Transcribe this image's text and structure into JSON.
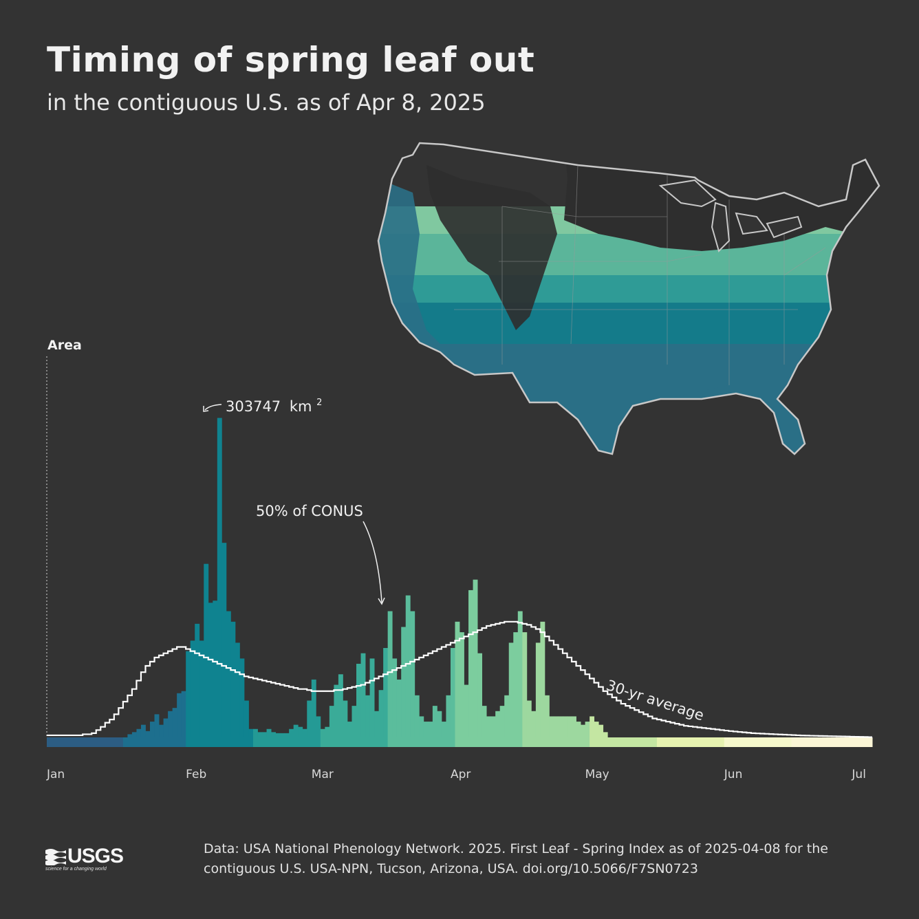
{
  "title": "Timing of spring leaf out",
  "subtitle": "in the contiguous U.S. as of Apr 8, 2025",
  "source": "Data: USA National Phenology Network. 2025. First Leaf - Spring Index as of 2025-04-08 for the contiguous U.S. USA-NPN, Tucson, Arizona, USA. doi.org/10.5066/F7SN0723",
  "logo": {
    "word": "USGS",
    "tagline": "science for a changing world"
  },
  "map": {
    "fill_colors": [
      "#2a6f86",
      "#147b8a",
      "#2f9b96",
      "#5bb59a",
      "#80c8a0"
    ],
    "outline_color": "#c8c8c8"
  },
  "chart_data": {
    "type": "bar",
    "ylabel": "Area",
    "x_tick_labels": [
      "Jan",
      "Feb",
      "Mar",
      "Apr",
      "May",
      "Jun",
      "Jul"
    ],
    "x_ticks_day": [
      0,
      31,
      59,
      90,
      120,
      151,
      181
    ],
    "x_domain": [
      0,
      184
    ],
    "y_domain": [
      0,
      310000
    ],
    "band_colors": [
      {
        "start": 0,
        "end": 17,
        "color": "#2c5d83"
      },
      {
        "start": 17,
        "end": 31,
        "color": "#1d6f8e"
      },
      {
        "start": 31,
        "end": 46,
        "color": "#0f8390"
      },
      {
        "start": 46,
        "end": 61,
        "color": "#249a95"
      },
      {
        "start": 61,
        "end": 76,
        "color": "#3aab98"
      },
      {
        "start": 76,
        "end": 91,
        "color": "#5bbd9c"
      },
      {
        "start": 91,
        "end": 106,
        "color": "#7ccd9e"
      },
      {
        "start": 106,
        "end": 121,
        "color": "#9dd89f"
      },
      {
        "start": 121,
        "end": 136,
        "color": "#c4e6a2"
      },
      {
        "start": 136,
        "end": 151,
        "color": "#e6f2b0"
      },
      {
        "start": 151,
        "end": 166,
        "color": "#f6f8cc"
      },
      {
        "start": 166,
        "end": 184,
        "color": "#fbf6d6"
      }
    ],
    "series": [
      {
        "name": "2025",
        "start_day": 0,
        "values": [
          0,
          0,
          0,
          0,
          0,
          0,
          0,
          0,
          0,
          0,
          0,
          0,
          0,
          0,
          0,
          0,
          0,
          0,
          3000,
          5000,
          8000,
          12000,
          6000,
          15000,
          22000,
          12000,
          18000,
          25000,
          28000,
          42000,
          44000,
          82000,
          92000,
          108000,
          92000,
          165000,
          128000,
          130000,
          303747,
          185000,
          120000,
          110000,
          90000,
          75000,
          35000,
          8000,
          8000,
          5000,
          5000,
          8000,
          5000,
          4000,
          4000,
          4000,
          8000,
          12000,
          10000,
          8000,
          35000,
          55000,
          20000,
          8000,
          10000,
          30000,
          50000,
          60000,
          35000,
          15000,
          30000,
          70000,
          80000,
          40000,
          75000,
          25000,
          45000,
          85000,
          120000,
          75000,
          55000,
          105000,
          135000,
          120000,
          40000,
          20000,
          15000,
          15000,
          30000,
          25000,
          15000,
          40000,
          85000,
          110000,
          100000,
          50000,
          140000,
          150000,
          80000,
          30000,
          20000,
          20000,
          25000,
          30000,
          40000,
          90000,
          100000,
          120000,
          100000,
          35000,
          25000,
          90000,
          110000,
          40000,
          20000,
          20000,
          20000,
          20000,
          20000,
          20000,
          15000,
          12000,
          15000,
          20000,
          15000,
          12000,
          5000,
          0,
          0,
          0,
          0,
          0,
          0,
          0,
          0,
          0,
          0,
          0,
          0,
          0,
          0,
          0,
          0,
          0,
          0,
          0,
          0,
          0,
          0,
          0,
          0,
          0,
          0,
          0,
          0,
          0,
          0,
          0,
          0,
          0,
          0,
          0,
          0,
          0,
          0,
          0,
          0,
          0,
          0,
          0,
          0,
          0,
          0,
          0,
          0,
          0,
          0,
          0,
          0,
          0,
          0,
          0,
          0,
          0,
          0,
          0,
          0,
          0,
          0,
          0,
          0,
          0,
          0,
          0,
          0,
          0
        ]
      },
      {
        "name": "30-yr average",
        "start_day": 0,
        "values": [
          2000,
          2000,
          2000,
          2000,
          2000,
          2000,
          2000,
          2000,
          3000,
          3000,
          4000,
          7000,
          10000,
          14000,
          17000,
          22000,
          28000,
          34000,
          40000,
          46000,
          54000,
          62000,
          68000,
          72000,
          76000,
          78000,
          80000,
          82000,
          84000,
          86000,
          86000,
          84000,
          82000,
          80000,
          78000,
          76000,
          74000,
          72000,
          70000,
          68000,
          66000,
          64000,
          62000,
          60000,
          58000,
          57000,
          56000,
          55000,
          54000,
          53000,
          52000,
          51000,
          50000,
          49000,
          48000,
          47000,
          46000,
          46000,
          45000,
          44000,
          44000,
          44000,
          44000,
          44000,
          45000,
          45000,
          46000,
          47000,
          48000,
          49000,
          50000,
          52000,
          54000,
          56000,
          58000,
          60000,
          62000,
          64000,
          66000,
          68000,
          70000,
          72000,
          74000,
          76000,
          78000,
          80000,
          82000,
          84000,
          86000,
          88000,
          90000,
          92000,
          94000,
          96000,
          98000,
          100000,
          102000,
          104000,
          106000,
          107000,
          108000,
          109000,
          110000,
          110000,
          110000,
          109000,
          108000,
          107000,
          105000,
          103000,
          100000,
          96000,
          92000,
          88000,
          84000,
          80000,
          76000,
          72000,
          68000,
          64000,
          60000,
          56000,
          52000,
          48000,
          44000,
          41000,
          38000,
          35000,
          32000,
          30000,
          28000,
          26000,
          24000,
          22000,
          20000,
          18000,
          17000,
          16000,
          15000,
          14000,
          13000,
          12000,
          11000,
          10500,
          10000,
          9500,
          9000,
          8500,
          8000,
          7500,
          7000,
          6500,
          6000,
          5600,
          5200,
          4800,
          4400,
          4000,
          3800,
          3600,
          3400,
          3200,
          3000,
          2800,
          2600,
          2400,
          2200,
          2000,
          1800,
          1700,
          1600,
          1500,
          1400,
          1300,
          1200,
          1100,
          1000,
          900,
          800,
          700,
          600,
          500,
          400,
          300
        ]
      }
    ],
    "annotations": [
      {
        "label": "303747",
        "unit": "km",
        "sup": "2",
        "day": 38
      },
      {
        "label": "50% of CONUS",
        "day": 75
      },
      {
        "label": "30-yr average",
        "day": 126
      }
    ]
  }
}
